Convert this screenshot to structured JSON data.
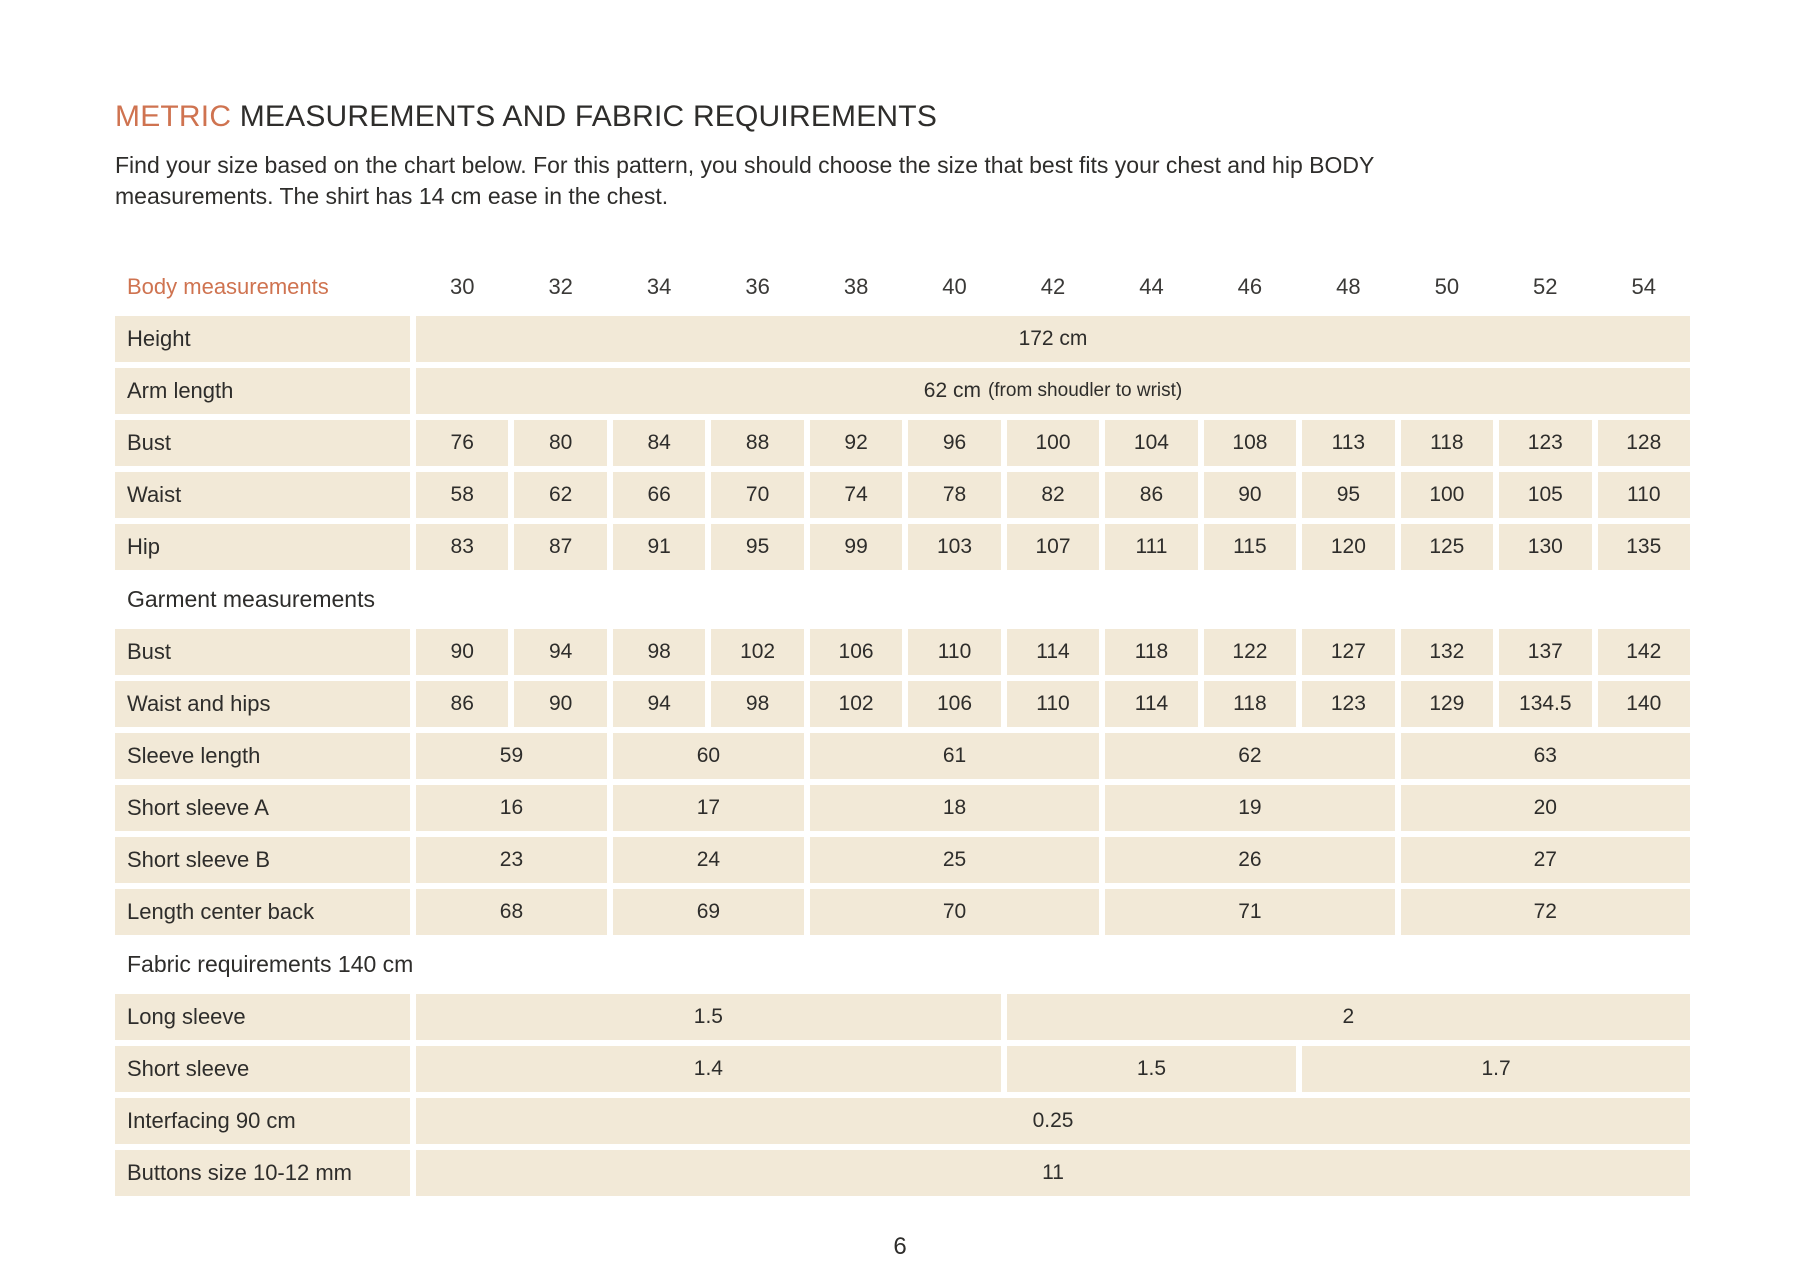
{
  "colors": {
    "accent": "#cf7350",
    "cell_background": "#f2e9d7",
    "text": "#2e2d2b",
    "page_background": "#ffffff"
  },
  "header": {
    "title_accent": "METRIC",
    "title_rest": " MEASUREMENTS AND FABRIC REQUIREMENTS",
    "intro_line1": "Find your size based on the chart below. For this pattern, you should choose the size that best fits your chest and hip BODY",
    "intro_line2": "measurements. The shirt has 14 cm ease in the chest."
  },
  "table": {
    "header": {
      "label": "Body measurements",
      "sizes": [
        "30",
        "32",
        "34",
        "36",
        "38",
        "40",
        "42",
        "44",
        "46",
        "48",
        "50",
        "52",
        "54"
      ]
    },
    "sections": [
      {
        "title": "",
        "rows": [
          {
            "label": "Height",
            "cells": [
              {
                "value": "172 cm",
                "span": 13
              }
            ]
          },
          {
            "label": "Arm length",
            "cells": [
              {
                "value": "62 cm",
                "note": "(from shoudler to wrist)",
                "span": 13
              }
            ]
          },
          {
            "label": "Bust",
            "cells": [
              {
                "value": "76"
              },
              {
                "value": "80"
              },
              {
                "value": "84"
              },
              {
                "value": "88"
              },
              {
                "value": "92"
              },
              {
                "value": "96"
              },
              {
                "value": "100"
              },
              {
                "value": "104"
              },
              {
                "value": "108"
              },
              {
                "value": "113"
              },
              {
                "value": "118"
              },
              {
                "value": "123"
              },
              {
                "value": "128"
              }
            ]
          },
          {
            "label": "Waist",
            "cells": [
              {
                "value": "58"
              },
              {
                "value": "62"
              },
              {
                "value": "66"
              },
              {
                "value": "70"
              },
              {
                "value": "74"
              },
              {
                "value": "78"
              },
              {
                "value": "82"
              },
              {
                "value": "86"
              },
              {
                "value": "90"
              },
              {
                "value": "95"
              },
              {
                "value": "100"
              },
              {
                "value": "105"
              },
              {
                "value": "110"
              }
            ]
          },
          {
            "label": "Hip",
            "cells": [
              {
                "value": "83"
              },
              {
                "value": "87"
              },
              {
                "value": "91"
              },
              {
                "value": "95"
              },
              {
                "value": "99"
              },
              {
                "value": "103"
              },
              {
                "value": "107"
              },
              {
                "value": "111"
              },
              {
                "value": "115"
              },
              {
                "value": "120"
              },
              {
                "value": "125"
              },
              {
                "value": "130"
              },
              {
                "value": "135"
              }
            ]
          }
        ]
      },
      {
        "title": "Garment measurements",
        "rows": [
          {
            "label": "Bust",
            "cells": [
              {
                "value": "90"
              },
              {
                "value": "94"
              },
              {
                "value": "98"
              },
              {
                "value": "102"
              },
              {
                "value": "106"
              },
              {
                "value": "110"
              },
              {
                "value": "114"
              },
              {
                "value": "118"
              },
              {
                "value": "122"
              },
              {
                "value": "127"
              },
              {
                "value": "132"
              },
              {
                "value": "137"
              },
              {
                "value": "142"
              }
            ]
          },
          {
            "label": "Waist and hips",
            "cells": [
              {
                "value": "86"
              },
              {
                "value": "90"
              },
              {
                "value": "94"
              },
              {
                "value": "98"
              },
              {
                "value": "102"
              },
              {
                "value": "106"
              },
              {
                "value": "110"
              },
              {
                "value": "114"
              },
              {
                "value": "118"
              },
              {
                "value": "123"
              },
              {
                "value": "129"
              },
              {
                "value": "134.5"
              },
              {
                "value": "140"
              }
            ]
          },
          {
            "label": "Sleeve length",
            "cells": [
              {
                "value": "59",
                "span": 2
              },
              {
                "value": "60",
                "span": 2
              },
              {
                "value": "61",
                "span": 3
              },
              {
                "value": "62",
                "span": 3
              },
              {
                "value": "63",
                "span": 3
              }
            ]
          },
          {
            "label": "Short sleeve A",
            "cells": [
              {
                "value": "16",
                "span": 2
              },
              {
                "value": "17",
                "span": 2
              },
              {
                "value": "18",
                "span": 3
              },
              {
                "value": "19",
                "span": 3
              },
              {
                "value": "20",
                "span": 3
              }
            ]
          },
          {
            "label": "Short sleeve B",
            "cells": [
              {
                "value": "23",
                "span": 2
              },
              {
                "value": "24",
                "span": 2
              },
              {
                "value": "25",
                "span": 3
              },
              {
                "value": "26",
                "span": 3
              },
              {
                "value": "27",
                "span": 3
              }
            ]
          },
          {
            "label": "Length center back",
            "cells": [
              {
                "value": "68",
                "span": 2
              },
              {
                "value": "69",
                "span": 2
              },
              {
                "value": "70",
                "span": 3
              },
              {
                "value": "71",
                "span": 3
              },
              {
                "value": "72",
                "span": 3
              }
            ]
          }
        ]
      },
      {
        "title": "Fabric requirements 140 cm",
        "rows": [
          {
            "label": "Long sleeve",
            "cells": [
              {
                "value": "1.5",
                "span": 6
              },
              {
                "value": "2",
                "span": 7
              }
            ]
          },
          {
            "label": "Short sleeve",
            "cells": [
              {
                "value": "1.4",
                "span": 6
              },
              {
                "value": "1.5",
                "span": 3
              },
              {
                "value": "1.7",
                "span": 4
              }
            ]
          },
          {
            "label": "Interfacing 90 cm",
            "cells": [
              {
                "value": "0.25",
                "span": 13
              }
            ]
          },
          {
            "label": "Buttons size 10-12 mm",
            "cells": [
              {
                "value": "11",
                "span": 13
              }
            ]
          }
        ]
      }
    ]
  },
  "footer": {
    "page_number": "6"
  }
}
